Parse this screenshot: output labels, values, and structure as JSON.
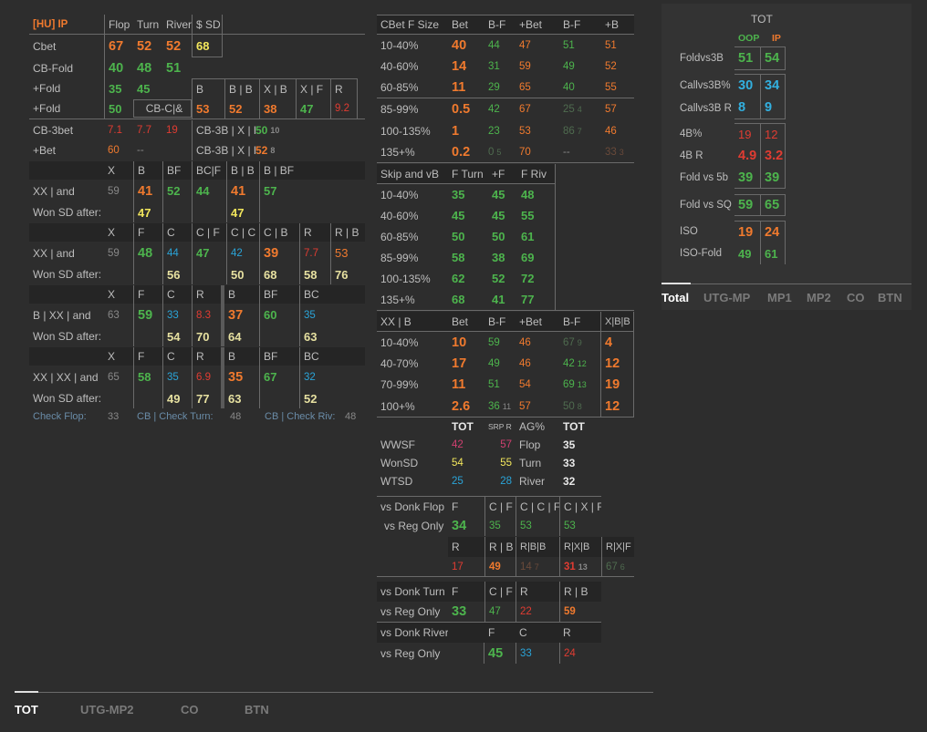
{
  "left": {
    "head": {
      "title": "[HU] IP",
      "c1": "Flop",
      "c2": "Turn",
      "c3": "River",
      "c4": "$ SD"
    },
    "cbet": {
      "label": "Cbet",
      "v1": "67",
      "v2": "52",
      "v3": "52",
      "v4": "68"
    },
    "cbfold": {
      "label": "CB-Fold",
      "v1": "40",
      "v2": "48",
      "v3": "51"
    },
    "fold1": {
      "label": "+Fold",
      "v1": "35",
      "v2": "45",
      "h1": "B",
      "h2": "B | B",
      "h3": "X | B",
      "h4": "X | F",
      "h5": "R"
    },
    "fold2": {
      "label": "+Fold",
      "v1": "50",
      "btn": "CB-C|&",
      "v3": "53",
      "v4": "52",
      "v5": "38",
      "v6": "47",
      "v7": "9.2"
    },
    "cb3bet": {
      "label": "CB-3bet",
      "v1": "7.1",
      "v2": "7.7",
      "v3": "19",
      "t1": "CB-3B | X | F",
      "n1": "50",
      "s1": "10"
    },
    "plusbet": {
      "label": "+Bet",
      "v1": "60",
      "v2": "--",
      "t2": "CB-3B | X | B",
      "n2": "52",
      "s2": "8"
    },
    "g1": {
      "h": [
        "X",
        "B",
        "BF",
        "BC|F",
        "B | B",
        "B | BF"
      ],
      "label": "XX | and",
      "vals": [
        "59",
        "41",
        "52",
        "44",
        "41",
        "57"
      ],
      "won": "Won SD after:",
      "wvals": [
        "47",
        "47"
      ]
    },
    "g2": {
      "h": [
        "X",
        "F",
        "C",
        "C | F",
        "C | C",
        "C | B",
        "R",
        "R | B"
      ],
      "label": "XX | and",
      "vals": [
        "59",
        "48",
        "44",
        "47",
        "42",
        "39",
        "7.7",
        "53"
      ],
      "won": "Won SD after:",
      "wvals": [
        "56",
        "50",
        "68",
        "58",
        "76"
      ]
    },
    "g3": {
      "h": [
        "X",
        "F",
        "C",
        "R",
        "B",
        "BF",
        "BC"
      ],
      "label": "B | XX | and",
      "vals": [
        "63",
        "59",
        "33",
        "8.3",
        "37",
        "60",
        "35"
      ],
      "won": "Won SD after:",
      "wvals": [
        "54",
        "70",
        "64",
        "63"
      ]
    },
    "g4": {
      "h": [
        "X",
        "F",
        "C",
        "R",
        "B",
        "BF",
        "BC"
      ],
      "label": "XX | XX | and",
      "vals": [
        "65",
        "58",
        "35",
        "6.9",
        "35",
        "67",
        "32"
      ],
      "won": "Won SD after:",
      "wvals": [
        "49",
        "77",
        "63",
        "52"
      ]
    },
    "checks": {
      "l1": "Check Flop:",
      "v1": "33",
      "l2": "CB | Check Turn:",
      "v2": "48",
      "l3": "CB | Check Riv:",
      "v3": "48"
    }
  },
  "mid": {
    "cbsize": {
      "h": [
        "CBet F Size",
        "Bet",
        "B-F",
        "+Bet",
        "B-F",
        "+B"
      ],
      "rows": [
        [
          "10-40%",
          "40",
          "44",
          "47",
          "51",
          "51"
        ],
        [
          "40-60%",
          "14",
          "31",
          "59",
          "49",
          "52"
        ],
        [
          "60-85%",
          "11",
          "29",
          "65",
          "40",
          "55"
        ],
        [
          "85-99%",
          "0.5",
          "42",
          "67",
          "25",
          "57"
        ],
        [
          "100-135%",
          "1",
          "23",
          "53",
          "86",
          "46"
        ],
        [
          "135+%",
          "0.2",
          "0",
          "70",
          "--",
          "33"
        ]
      ],
      "tiny": {
        "r3": "4",
        "r4": "7",
        "r5a": "5",
        "r5b": "3"
      }
    },
    "skip": {
      "h": [
        "Skip and vB",
        "F Turn",
        "+F",
        "F Riv"
      ],
      "rows": [
        [
          "10-40%",
          "35",
          "45",
          "48"
        ],
        [
          "40-60%",
          "45",
          "45",
          "55"
        ],
        [
          "60-85%",
          "50",
          "50",
          "61"
        ],
        [
          "85-99%",
          "58",
          "38",
          "69"
        ],
        [
          "100-135%",
          "62",
          "52",
          "72"
        ],
        [
          "135+%",
          "68",
          "41",
          "77"
        ]
      ]
    },
    "xxb": {
      "h": [
        "XX | B",
        "Bet",
        "B-F",
        "+Bet",
        "B-F",
        "X|B|B"
      ],
      "rows": [
        [
          "10-40%",
          "10",
          "59",
          "46",
          "67",
          "4"
        ],
        [
          "40-70%",
          "17",
          "49",
          "46",
          "42",
          "12"
        ],
        [
          "70-99%",
          "11",
          "51",
          "54",
          "69",
          "19"
        ],
        [
          "100+%",
          "2.6",
          "36",
          "57",
          "50",
          "12"
        ]
      ],
      "tiny": [
        "9",
        "12",
        "13",
        "11",
        "8"
      ]
    },
    "sd": {
      "h1": "TOT",
      "h2": "SRP R",
      "h3": "AG%",
      "h4": "TOT",
      "rows": [
        [
          "WWSF",
          "42",
          "57",
          "Flop",
          "35"
        ],
        [
          "WonSD",
          "54",
          "55",
          "Turn",
          "33"
        ],
        [
          "WTSD",
          "25",
          "28",
          "River",
          "32"
        ]
      ]
    },
    "donkflop": {
      "label": "vs Donk Flop",
      "h": [
        "F",
        "C | F",
        "C | C | F",
        "C | X | F"
      ],
      "reg": "vs Reg Only",
      "vals": [
        "34",
        "35",
        "53",
        "53"
      ],
      "h2": [
        "R",
        "R | B",
        "R|B|B",
        "R|X|B",
        "R|X|F"
      ],
      "vals2": [
        "17",
        "49",
        "14",
        "31",
        "67"
      ],
      "tiny": [
        "7",
        "13",
        "6"
      ]
    },
    "donkturn": {
      "label": "vs Donk Turn",
      "h": [
        "F",
        "C | F",
        "R",
        "R | B"
      ],
      "reg": "vs Reg Only",
      "vals": [
        "33",
        "47",
        "22",
        "59"
      ]
    },
    "donkriver": {
      "label": "vs Donk River",
      "h": [
        "F",
        "C",
        "R"
      ],
      "reg": "vs Reg Only",
      "vals": [
        "45",
        "33",
        "24"
      ]
    }
  },
  "right": {
    "tot": "TOT",
    "oop": "OOP",
    "ip": "IP",
    "rows": [
      [
        "Foldvs3B",
        "51",
        "54"
      ],
      [
        "Callvs3B%",
        "30",
        "34"
      ],
      [
        "Callvs3B R",
        "8",
        "9"
      ],
      [
        "4B%",
        "19",
        "12"
      ],
      [
        "4B R",
        "4.9",
        "3.2"
      ],
      [
        "Fold vs 5b",
        "39",
        "39"
      ],
      [
        "Fold vs SQ",
        "59",
        "65"
      ],
      [
        "ISO",
        "19",
        "24"
      ],
      [
        "ISO-Fold",
        "49",
        "61"
      ]
    ],
    "tabs": [
      "Total",
      "UTG-MP",
      "MP1",
      "MP2",
      "CO",
      "BTN"
    ]
  },
  "bottomtabs": [
    "TOT",
    "UTG-MP2",
    "CO",
    "BTN"
  ],
  "colors": {
    "bg": "#2d2d2d",
    "orange": "#f07a2e",
    "green": "#4db44d",
    "yellow": "#f2e65c",
    "red": "#e03c32",
    "blue": "#2aa4d8"
  }
}
